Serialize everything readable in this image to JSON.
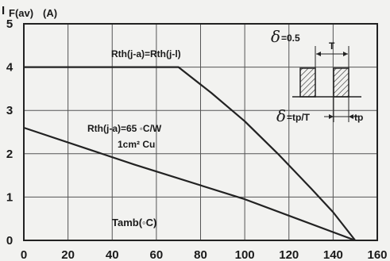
{
  "chart_data": {
    "type": "line",
    "ylabel_main": "I",
    "ylabel_sub": "F(av)",
    "ylabel_unit": "(A)",
    "xlabel": "Tamb(◦C)",
    "xlim": [
      0,
      160
    ],
    "ylim": [
      0,
      5
    ],
    "x_ticks": [
      "0",
      "20",
      "40",
      "60",
      "80",
      "100",
      "120",
      "140",
      "160"
    ],
    "y_ticks": [
      "0",
      "1",
      "2",
      "3",
      "4",
      "5"
    ],
    "grid": true,
    "series": [
      {
        "name": "Rth(j-a)=Rth(j-l)",
        "points": [
          [
            0,
            4.0
          ],
          [
            70,
            4.0
          ],
          [
            85,
            3.4
          ],
          [
            100,
            2.75
          ],
          [
            115,
            2.0
          ],
          [
            130,
            1.2
          ],
          [
            140,
            0.65
          ],
          [
            150,
            0.0
          ]
        ]
      },
      {
        "name_line1": "Rth(j-a)=65 ◦C/W",
        "name_line2": "1cm² Cu",
        "points": [
          [
            0,
            2.6
          ],
          [
            50,
            1.75
          ],
          [
            100,
            0.95
          ],
          [
            150,
            0.0
          ]
        ]
      }
    ],
    "inset": {
      "delta_symbol": "δ",
      "duty_label": "=0.5",
      "period_label": "T",
      "formula_label": "=tp/T",
      "pulse_label": "tp"
    }
  }
}
